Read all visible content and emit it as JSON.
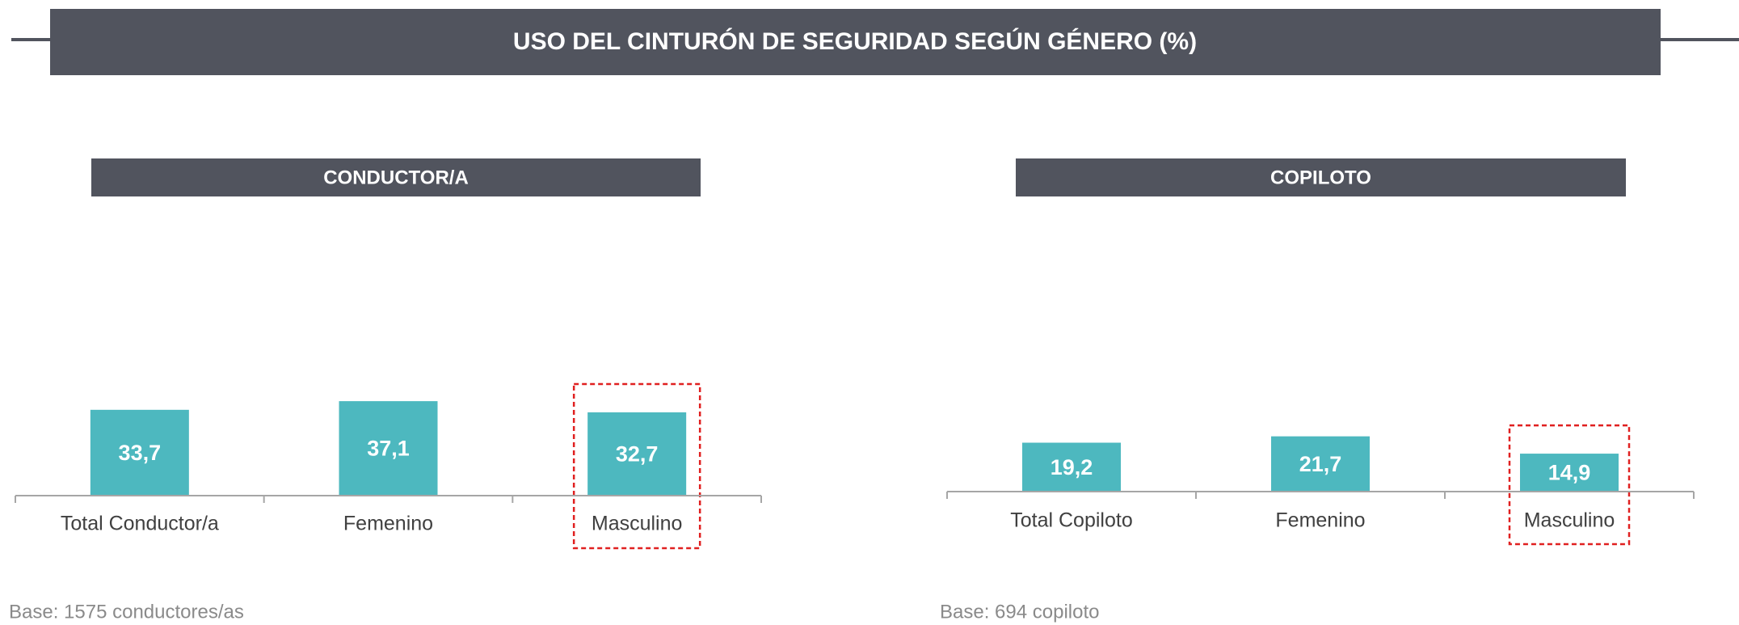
{
  "title": "USO DEL CINTURÓN DE SEGURIDAD SEGÚN GÉNERO (%)",
  "chart_data": [
    {
      "type": "bar",
      "title": "CONDUCTOR/A",
      "categories": [
        "Total Conductor/a",
        "Femenino",
        "Masculino"
      ],
      "values": [
        33.7,
        37.1,
        32.7
      ],
      "value_labels": [
        "33,7",
        "37,1",
        "32,7"
      ],
      "color": "#4db8bf",
      "note": "Base: 1575 conductores/as"
    },
    {
      "type": "bar",
      "title": "COPILOTO",
      "categories": [
        "Total Copiloto",
        "Femenino",
        "Masculino"
      ],
      "values": [
        19.2,
        21.7,
        14.9
      ],
      "value_labels": [
        "19,2",
        "21,7",
        "14,9"
      ],
      "color": "#4db8bf",
      "note": "Base: 694 copiloto"
    }
  ]
}
